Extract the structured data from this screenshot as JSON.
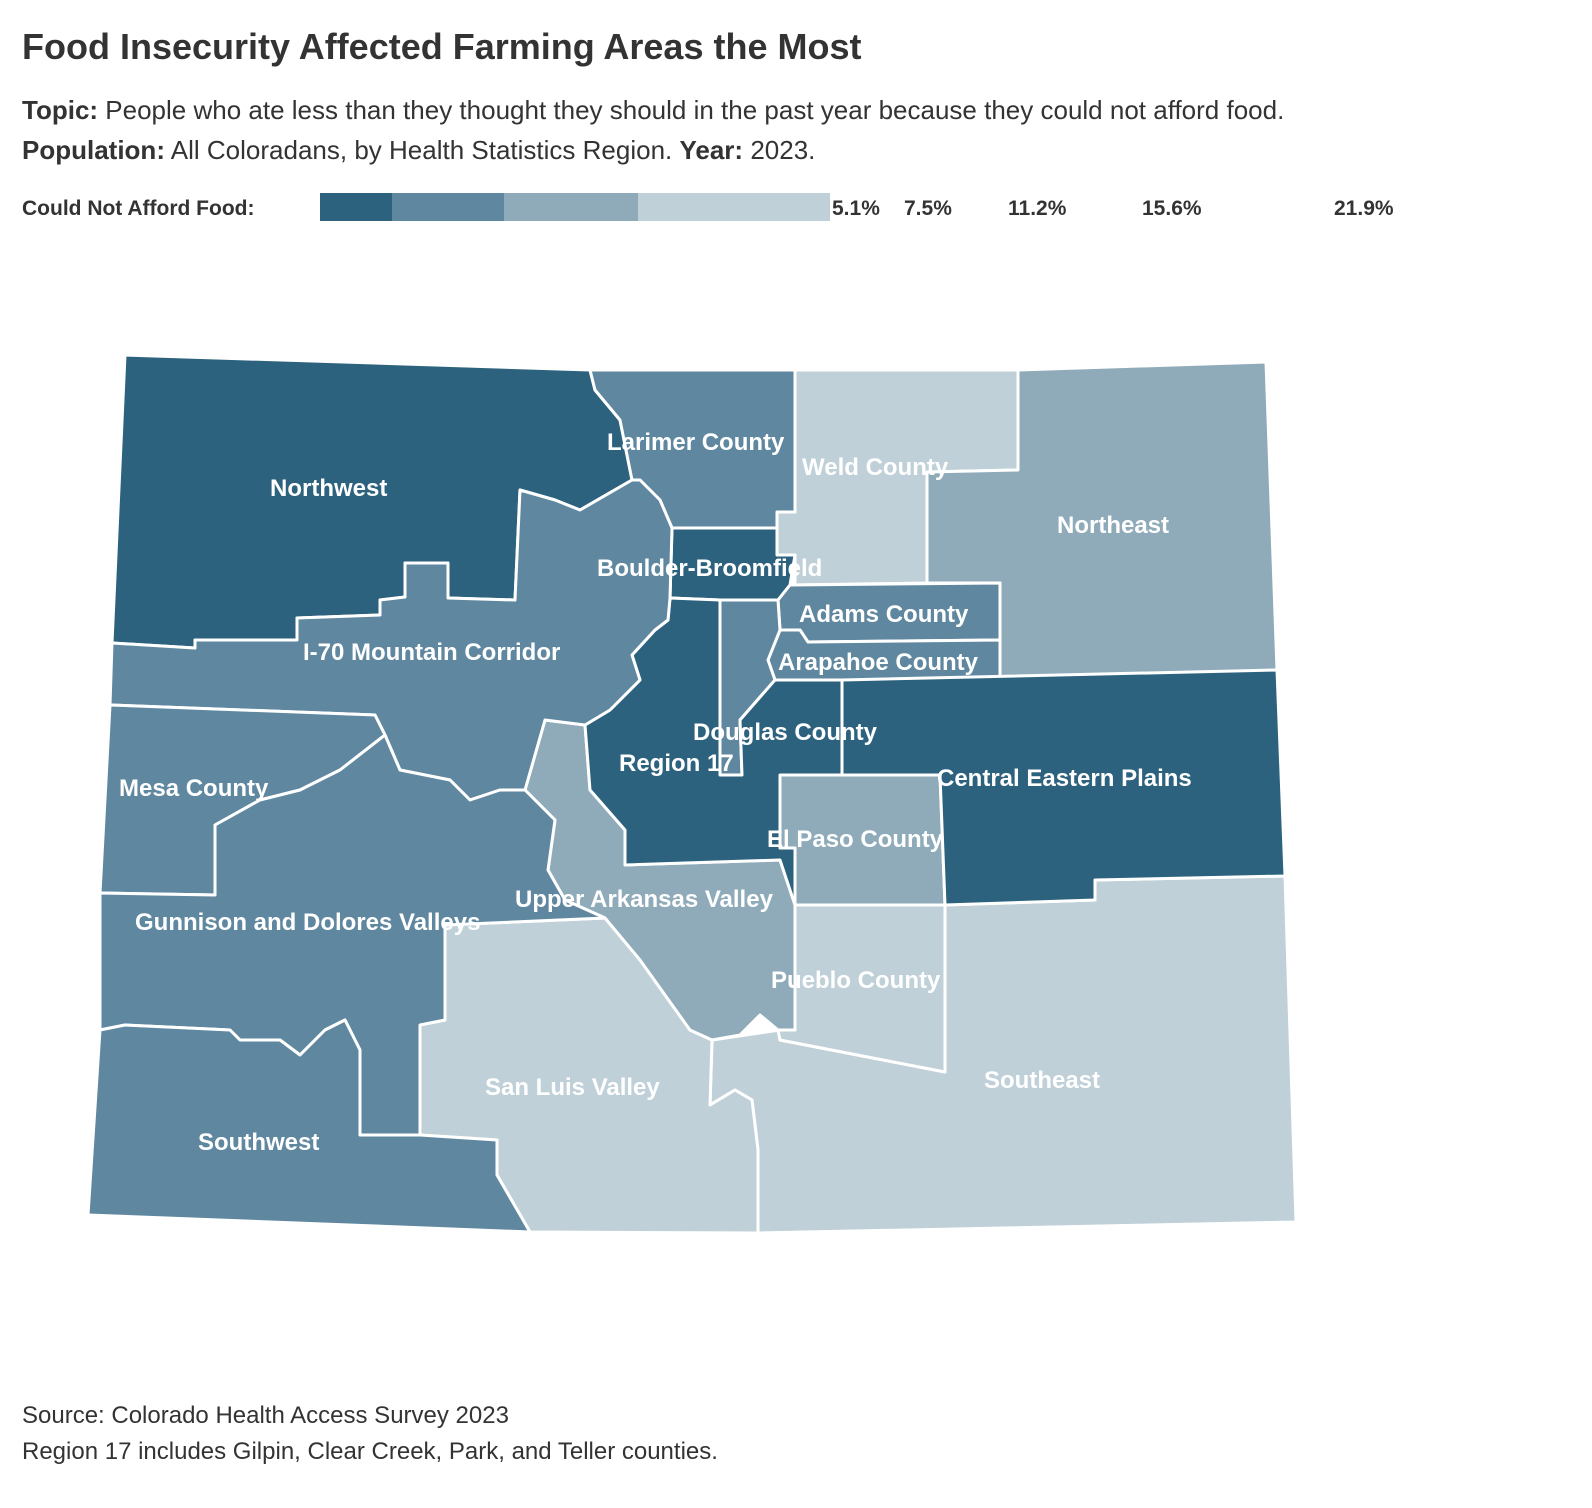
{
  "header": {
    "title": "Food Insecurity Affected Farming Areas the Most",
    "topic_label": "Topic:",
    "topic_text": "People who ate less than they thought they should in the past year because they could not afford food.",
    "population_label": "Population:",
    "population_text": "All Coloradans, by Health Statistics Region.",
    "year_label": "Year:",
    "year_text": "2023."
  },
  "legend": {
    "label": "Could Not Afford Food:",
    "ticks": [
      "5.1%",
      "7.5%",
      "11.2%",
      "15.6%",
      "21.9%"
    ],
    "colors": [
      "#2d627f",
      "#5f88a0",
      "#8fabba",
      "#c0d0d8"
    ]
  },
  "map": {
    "regions": {
      "northwest": "Northwest",
      "larimer": "Larimer County",
      "weld": "Weld County",
      "northeast": "Northeast",
      "boulder": "Boulder-Broomfield",
      "adams": "Adams County",
      "i70": "I-70 Mountain Corridor",
      "arapahoe": "Arapahoe County",
      "douglas": "Douglas County",
      "region17": "Region 17",
      "mesa": "Mesa County",
      "central_eastern": "Central Eastern Plains",
      "elpaso": "El Paso County",
      "upper_arkansas": "Upper Arkansas Valley",
      "gunnison": "Gunnison and Dolores Valleys",
      "pueblo": "Pueblo County",
      "san_luis": "San Luis Valley",
      "southeast": "Southeast",
      "southwest": "Southwest"
    }
  },
  "footer": {
    "source": "Source: Colorado Health Access Survey 2023",
    "note": "Region 17 includes Gilpin, Clear Creek, Park, and Teller counties."
  }
}
